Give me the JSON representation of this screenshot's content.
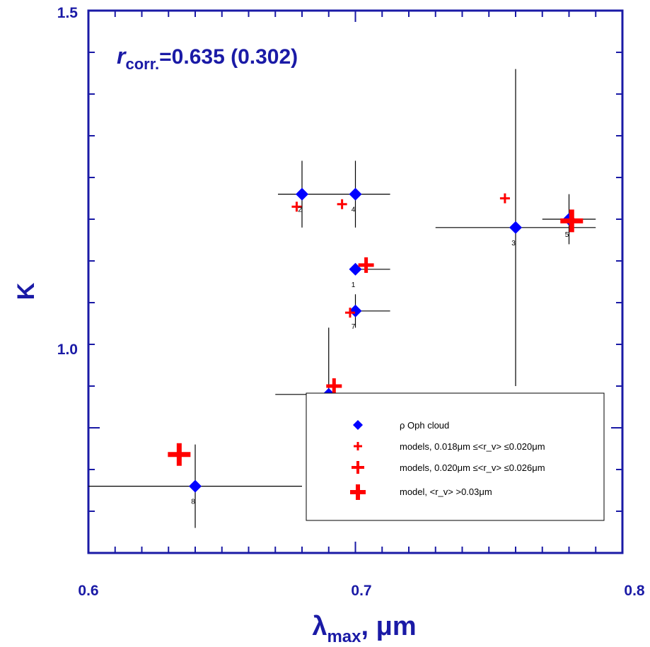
{
  "chart_data": {
    "type": "scatter",
    "title": "",
    "annotation": {
      "symbol": "r",
      "subscript": "corr.",
      "text": "=0.635 (0.302)"
    },
    "xlabel": {
      "symbol": "λ",
      "subscript": "max",
      "text": ", μm"
    },
    "ylabel": "K",
    "xlim": [
      0.6,
      0.8
    ],
    "ylim": [
      0.85,
      1.5
    ],
    "x_ticks": [
      "0.6",
      "0.7",
      "0.8"
    ],
    "y_ticks": [
      "1.0",
      "1.5"
    ],
    "grid": false,
    "legend_placement": "bottom-right",
    "colors": {
      "axis": "#1a1aa6",
      "observed": "#0000ff",
      "model": "#ff0000",
      "errorbar": "#000000"
    },
    "series": [
      {
        "name": "ρ Oph cloud",
        "marker": "diamond",
        "points": [
          {
            "id": "1",
            "x": 0.7,
            "y": 1.19,
            "xerr": [
              0.7,
              0.713
            ],
            "yerr": [
              1.19,
              1.19
            ]
          },
          {
            "id": "2",
            "x": 0.68,
            "y": 1.28,
            "xerr": [
              0.671,
              0.7
            ],
            "yerr": [
              1.24,
              1.32
            ]
          },
          {
            "id": "3",
            "x": 0.76,
            "y": 1.24,
            "xerr": [
              0.73,
              0.79
            ],
            "yerr": [
              1.05,
              1.43
            ]
          },
          {
            "id": "4",
            "x": 0.7,
            "y": 1.28,
            "xerr": [
              0.7,
              0.713
            ],
            "yerr": [
              1.24,
              1.32
            ]
          },
          {
            "id": "5",
            "x": 0.78,
            "y": 1.25,
            "xerr": [
              0.77,
              0.79
            ],
            "yerr": [
              1.22,
              1.28
            ]
          },
          {
            "id": "6",
            "x": 0.69,
            "y": 1.04,
            "xerr": [
              0.67,
              0.713
            ],
            "yerr": [
              0.96,
              1.12
            ]
          },
          {
            "id": "7",
            "x": 0.7,
            "y": 1.14,
            "xerr": [
              0.7,
              0.713
            ],
            "yerr": [
              1.12,
              1.16
            ]
          },
          {
            "id": "8",
            "x": 0.64,
            "y": 0.93,
            "xerr": [
              0.6,
              0.68
            ],
            "yerr": [
              0.88,
              0.98
            ]
          }
        ]
      },
      {
        "name": "models, 0.018μm ≤<r_v> ≤0.020μm",
        "marker": "cross-small",
        "points": [
          {
            "x": 0.678,
            "y": 1.265
          },
          {
            "x": 0.695,
            "y": 1.268
          },
          {
            "x": 0.756,
            "y": 1.275
          },
          {
            "x": 0.698,
            "y": 1.138
          }
        ]
      },
      {
        "name": "models, 0.020μm ≤<r_v> ≤0.026μm",
        "marker": "cross-medium",
        "points": [
          {
            "x": 0.704,
            "y": 1.195
          },
          {
            "x": 0.692,
            "y": 1.05
          }
        ]
      },
      {
        "name": "model, <r_v> >0.03μm",
        "marker": "cross-large",
        "points": [
          {
            "x": 0.781,
            "y": 1.248
          },
          {
            "x": 0.634,
            "y": 0.968
          }
        ]
      }
    ]
  }
}
